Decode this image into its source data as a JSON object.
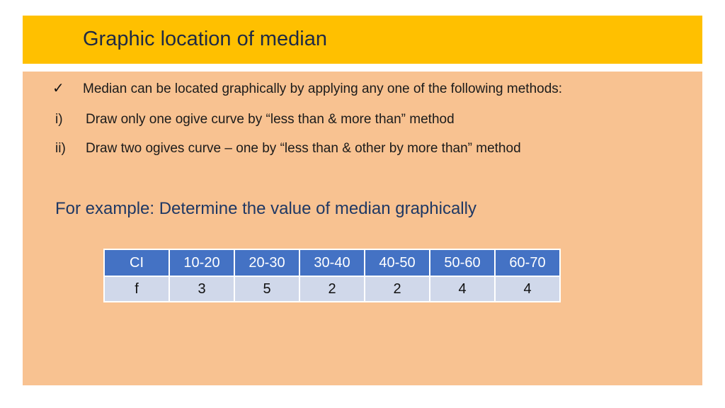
{
  "slide": {
    "title": "Graphic location of median",
    "intro": {
      "icon": "check-icon",
      "text": "Median can be located graphically by applying any one of the following methods:"
    },
    "methods": [
      {
        "marker": "i)",
        "text": "Draw only one ogive curve by “less than & more than” method"
      },
      {
        "marker": "ii)",
        "text": "Draw two ogives curve – one by “less than & other by more than” method"
      }
    ],
    "example": "For example: Determine the value of median graphically"
  },
  "table": {
    "header": [
      "CI",
      "10-20",
      "20-30",
      "30-40",
      "40-50",
      "50-60",
      "60-70"
    ],
    "row": [
      "f",
      "3",
      "5",
      "2",
      "2",
      "4",
      "4"
    ]
  },
  "colors": {
    "title_bar": "#ffc000",
    "panel": "#f8c291",
    "table_header": "#4472c4",
    "table_body": "#d0d8ea",
    "example_text": "#1f3864"
  }
}
